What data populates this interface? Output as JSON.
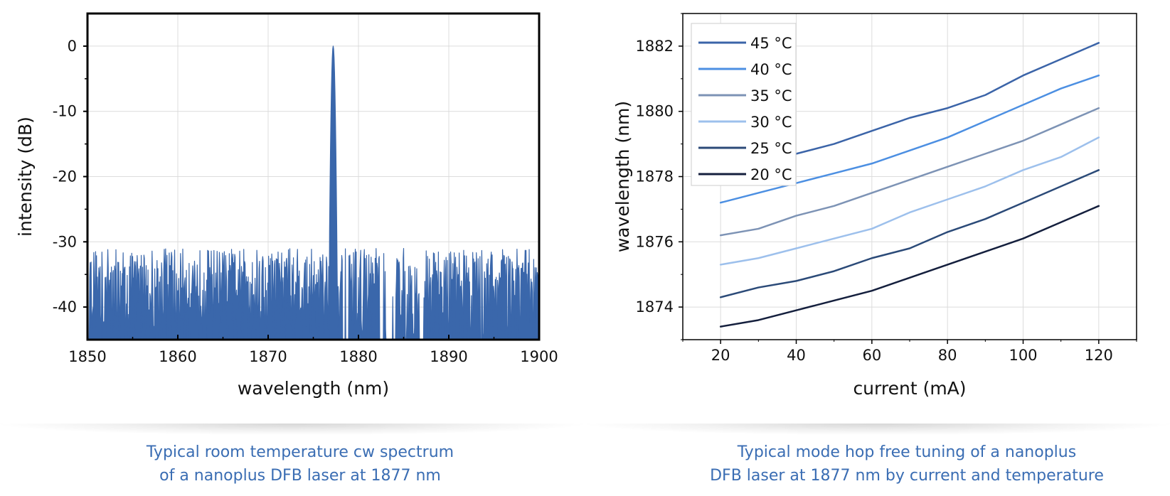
{
  "chart_data": [
    {
      "type": "line",
      "xlabel": "wavelength (nm)",
      "ylabel": "intensity (dB)",
      "xlim": [
        1850,
        1900
      ],
      "ylim": [
        -45,
        5
      ],
      "xticks": [
        1850,
        1860,
        1870,
        1880,
        1890,
        1900
      ],
      "yticks": [
        0,
        -10,
        -20,
        -30,
        -40
      ],
      "grid": true,
      "peak": {
        "x": 1877.2,
        "y": 0
      },
      "noise_floor": {
        "min": -45,
        "max": -31
      },
      "series": [
        {
          "color": "#3a67ab",
          "fill": true
        }
      ]
    },
    {
      "type": "line",
      "xlabel": "current (mA)",
      "ylabel": "wavelength (nm)",
      "xlim": [
        10,
        130
      ],
      "ylim": [
        1873,
        1883
      ],
      "xticks": [
        20,
        40,
        60,
        80,
        100,
        120
      ],
      "yticks": [
        1874,
        1876,
        1878,
        1880,
        1882
      ],
      "grid": true,
      "legend": "top-left",
      "x": [
        20,
        30,
        40,
        50,
        60,
        70,
        80,
        90,
        100,
        110,
        120
      ],
      "series": [
        {
          "name": "45 °C",
          "color": "#3b64a8",
          "values": [
            1878.2,
            1878.5,
            1878.7,
            1879.0,
            1879.4,
            1879.8,
            1880.1,
            1880.5,
            1881.1,
            1881.6,
            1882.1
          ]
        },
        {
          "name": "40 °C",
          "color": "#4c8fe2",
          "values": [
            1877.2,
            1877.5,
            1877.8,
            1878.1,
            1878.4,
            1878.8,
            1879.2,
            1879.7,
            1880.2,
            1880.7,
            1881.1
          ]
        },
        {
          "name": "35 °C",
          "color": "#7d93b5",
          "values": [
            1876.2,
            1876.4,
            1876.8,
            1877.1,
            1877.5,
            1877.9,
            1878.3,
            1878.7,
            1879.1,
            1879.6,
            1880.1
          ]
        },
        {
          "name": "30 °C",
          "color": "#9dc0ec",
          "values": [
            1875.3,
            1875.5,
            1875.8,
            1876.1,
            1876.4,
            1876.9,
            1877.3,
            1877.7,
            1878.2,
            1878.6,
            1879.2
          ]
        },
        {
          "name": "25 °C",
          "color": "#2b4a78",
          "values": [
            1874.3,
            1874.6,
            1874.8,
            1875.1,
            1875.5,
            1875.8,
            1876.3,
            1876.7,
            1877.2,
            1877.7,
            1878.2
          ]
        },
        {
          "name": "20 °C",
          "color": "#141f3d",
          "values": [
            1873.4,
            1873.6,
            1873.9,
            1874.2,
            1874.5,
            1874.9,
            1875.3,
            1875.7,
            1876.1,
            1876.6,
            1877.1
          ]
        }
      ]
    }
  ],
  "captions": {
    "left": [
      "Typical room temperature cw spectrum",
      "of a nanoplus DFB laser at 1877 nm"
    ],
    "right": [
      "Typical mode hop free tuning of a nanoplus",
      "DFB laser at 1877 nm by current and temperature"
    ]
  }
}
